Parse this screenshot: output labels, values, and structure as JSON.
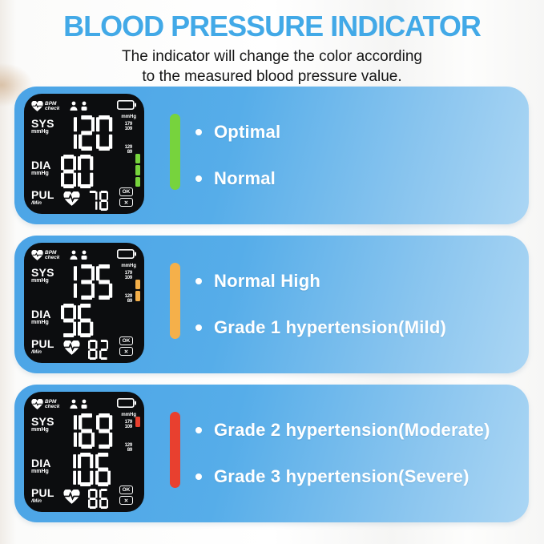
{
  "header": {
    "title": "BLOOD PRESSURE INDICATOR",
    "title_color": "#42A9E7",
    "subtitle_line1": "The indicator will change the color according",
    "subtitle_line2": "to the measured blood pressure value."
  },
  "display_labels": {
    "brand_line1": "BPM",
    "brand_line2": "check",
    "sys_label": "SYS",
    "sys_unit": "mmHg",
    "dia_label": "DIA",
    "dia_unit": "mmHg",
    "pul_label": "PUL",
    "pul_unit": "/Min",
    "battery_unit": "mmHg",
    "marker_high_line1": "179",
    "marker_high_line2": "109",
    "marker_mid_line1": "129",
    "marker_mid_line2": "89",
    "ok_badge": "OK",
    "no_badge": "✕"
  },
  "colors": {
    "optimal_green": "#77D33D",
    "warning_orange": "#F5B04A",
    "danger_red": "#E8402F"
  },
  "panels": [
    {
      "display": {
        "sys": "120",
        "dia": "80",
        "pul": "78",
        "scale_lit": [
          3,
          4,
          5
        ],
        "scale_color": "#77D33D"
      },
      "bar_color": "#77D33D",
      "items": [
        "Optimal",
        "Normal"
      ]
    },
    {
      "display": {
        "sys": "135",
        "dia": "96",
        "pul": "82",
        "scale_lit": [
          1,
          2
        ],
        "scale_color": "#F5B04A"
      },
      "bar_color": "#F5B04A",
      "items": [
        "Normal High",
        "Grade 1 hypertension(Mild)"
      ]
    },
    {
      "display": {
        "sys": "169",
        "dia": "106",
        "pul": "86",
        "scale_lit": [
          0
        ],
        "scale_color": "#E8402F"
      },
      "bar_color": "#E8402F",
      "items": [
        "Grade 2 hypertension(Moderate)",
        "Grade 3 hypertension(Severe)"
      ]
    }
  ]
}
